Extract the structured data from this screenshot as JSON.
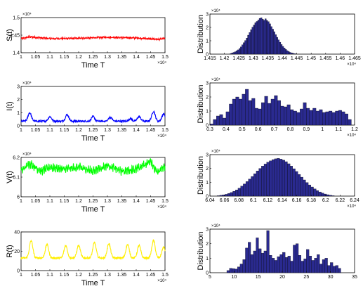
{
  "chart_data": [
    {
      "id": "s-time",
      "type": "line",
      "ylabel": "S(t)",
      "xlabel": "Time T",
      "x_range": [
        10000,
        15000
      ],
      "ylim": [
        14000,
        15000
      ],
      "xticks": [
        "1",
        "1.05",
        "1.1",
        "1.15",
        "1.2",
        "1.25",
        "1.3",
        "1.35",
        "1.4",
        "1.45",
        "1.5"
      ],
      "yticks": [
        "1.4",
        "1.45",
        "1.5"
      ],
      "x_multiplier": "×10⁴",
      "y_multiplier": "×10⁴",
      "color": "#ff0000",
      "base": 14420,
      "trend": [
        [
          10000,
          14400
        ],
        [
          10300,
          14450
        ],
        [
          11000,
          14400
        ],
        [
          12000,
          14410
        ],
        [
          13000,
          14440
        ],
        [
          14000,
          14420
        ],
        [
          14800,
          14380
        ],
        [
          15000,
          14410
        ]
      ],
      "osc_amp": 15,
      "noise_amp": 18
    },
    {
      "id": "s-dist",
      "type": "bar",
      "ylabel": "Distribution",
      "x_range": [
        14150,
        14650
      ],
      "ylim": [
        0,
        30000
      ],
      "xticks": [
        "1.415",
        "1.42",
        "1.425",
        "1.43",
        "1.435",
        "1.44",
        "1.445",
        "1.45",
        "1.455",
        "1.46",
        "1.465"
      ],
      "yticks": [
        "0",
        "1",
        "2",
        "3"
      ],
      "x_multiplier": "×10⁴",
      "y_multiplier": "×10⁴",
      "color": "#2a2a90",
      "bin_start": 14220,
      "bin_width": 5,
      "values": [
        500,
        900,
        1300,
        1800,
        2500,
        3200,
        4200,
        5400,
        7000,
        8600,
        10200,
        12000,
        14200,
        16200,
        18300,
        20200,
        21800,
        23500,
        24500,
        25500,
        26800,
        27200,
        26200,
        25300,
        26500,
        25200,
        24300,
        22700,
        20600,
        18700,
        16800,
        14600,
        12600,
        10700,
        8900,
        7200,
        5800,
        4600,
        3500,
        2600,
        1900,
        1300,
        900,
        600,
        350,
        200
      ]
    },
    {
      "id": "i-time",
      "type": "line",
      "ylabel": "I(t)",
      "xlabel": "Time T",
      "x_range": [
        10000,
        15000
      ],
      "ylim": [
        0,
        30000
      ],
      "xticks": [
        "1",
        "1.05",
        "1.1",
        "1.15",
        "1.2",
        "1.25",
        "1.3",
        "1.35",
        "1.4",
        "1.45",
        "1.5"
      ],
      "yticks": [
        "0",
        "1",
        "2",
        "3"
      ],
      "x_multiplier": "×10⁴",
      "y_multiplier": "×10⁴",
      "color": "#0000ff",
      "peaks": [
        [
          10300,
          10000
        ],
        [
          11000,
          7000
        ],
        [
          11600,
          8500
        ],
        [
          12500,
          7000
        ],
        [
          13100,
          6500
        ],
        [
          13800,
          5500
        ],
        [
          14100,
          7000
        ],
        [
          14600,
          11000
        ],
        [
          14950,
          9000
        ]
      ],
      "min_level": 3500,
      "noise_amp": 700
    },
    {
      "id": "i-dist",
      "type": "bar",
      "ylabel": "Distribution",
      "x_range": [
        3000,
        12000
      ],
      "ylim": [
        0,
        30000
      ],
      "xticks": [
        "0.3",
        "0.4",
        "0.5",
        "0.6",
        "0.7",
        "0.8",
        "0.9",
        "1",
        "1.1",
        "1.2"
      ],
      "yticks": [
        "0",
        "1",
        "2",
        "3"
      ],
      "x_multiplier": "×10⁴",
      "y_multiplier": "×10⁴",
      "color": "#2a2a90",
      "bin_start": 3000,
      "bin_width": 200,
      "values": [
        800,
        4000,
        6500,
        7500,
        5000,
        9500,
        15000,
        18500,
        20000,
        18500,
        22000,
        25500,
        17500,
        19000,
        12000,
        11500,
        16000,
        20500,
        15500,
        18500,
        21000,
        17500,
        13500,
        13000,
        14500,
        11000,
        10000,
        9000,
        11500,
        16000,
        12000,
        10500,
        12000,
        10000,
        11000,
        9000,
        9500,
        10000,
        9000,
        10000,
        10500,
        9500,
        8000,
        4000
      ]
    },
    {
      "id": "v-time",
      "type": "line",
      "ylabel": "V(t)",
      "xlabel": "Time T",
      "x_range": [
        10000,
        15000
      ],
      "ylim": [
        60000,
        62000
      ],
      "xticks": [
        "1",
        "1.05",
        "1.1",
        "1.15",
        "1.2",
        "1.25",
        "1.3",
        "1.35",
        "1.4",
        "1.45",
        "1.5"
      ],
      "yticks": [
        "6",
        "6.1",
        "6.2"
      ],
      "x_multiplier": "×10⁴",
      "y_multiplier": "×10⁴",
      "color": "#00ff00",
      "base": 61450,
      "trend": [
        [
          10000,
          61300
        ],
        [
          10300,
          61700
        ],
        [
          10700,
          61300
        ],
        [
          11000,
          61500
        ],
        [
          11500,
          61400
        ],
        [
          12000,
          61500
        ],
        [
          12500,
          61300
        ],
        [
          13000,
          61600
        ],
        [
          13500,
          61300
        ],
        [
          14000,
          61400
        ],
        [
          14500,
          61800
        ],
        [
          14700,
          61300
        ],
        [
          15000,
          61500
        ]
      ],
      "osc_amp": 120,
      "noise_amp": 130
    },
    {
      "id": "v-dist",
      "type": "bar",
      "ylabel": "Distribution",
      "x_range": [
        60400,
        62400
      ],
      "ylim": [
        0,
        30000
      ],
      "xticks": [
        "6.04",
        "6.06",
        "6.08",
        "6.1",
        "6.12",
        "6.14",
        "6.16",
        "6.18",
        "6.2",
        "6.22",
        "6.24"
      ],
      "yticks": [
        "0",
        "1",
        "2",
        "3"
      ],
      "x_multiplier": "×10⁴",
      "y_multiplier": "×10⁴",
      "color": "#2a2a90",
      "bin_start": 60500,
      "bin_width": 36,
      "values": [
        300,
        600,
        900,
        1300,
        1900,
        2600,
        3500,
        4500,
        5700,
        7200,
        8800,
        10500,
        12300,
        14200,
        16200,
        18200,
        20000,
        21700,
        23200,
        24500,
        25500,
        26400,
        27000,
        27300,
        26800,
        26000,
        24900,
        23400,
        21700,
        19800,
        17800,
        15700,
        13700,
        11700,
        9800,
        8100,
        6600,
        5200,
        4000,
        3000,
        2200,
        1500,
        1000,
        600,
        300
      ]
    },
    {
      "id": "r-time",
      "type": "line",
      "ylabel": "R(t)",
      "xlabel": "Time T",
      "x_range": [
        10000,
        15000
      ],
      "ylim": [
        0,
        40
      ],
      "xticks": [
        "1",
        "1.05",
        "1.1",
        "1.15",
        "1.2",
        "1.25",
        "1.3",
        "1.35",
        "1.4",
        "1.45",
        "1.5"
      ],
      "yticks": [
        "0",
        "20",
        "40"
      ],
      "x_multiplier": "×10⁴",
      "color": "#ffee00",
      "peaks": [
        [
          10350,
          31
        ],
        [
          10900,
          27
        ],
        [
          11550,
          26
        ],
        [
          12000,
          26
        ],
        [
          12550,
          29
        ],
        [
          13050,
          28
        ],
        [
          13700,
          27
        ],
        [
          14100,
          26
        ],
        [
          14600,
          31
        ],
        [
          14950,
          24
        ]
      ],
      "min_level": 13,
      "noise_amp": 1
    },
    {
      "id": "r-dist",
      "type": "bar",
      "ylabel": "Distribution",
      "x_range": [
        5,
        35
      ],
      "ylim": [
        0,
        30000
      ],
      "xticks": [
        "5",
        "10",
        "15",
        "20",
        "25",
        "30",
        "35"
      ],
      "yticks": [
        "0",
        "1",
        "2",
        "3"
      ],
      "x_multiplier": "",
      "y_multiplier": "×10⁴",
      "color": "#2a2a90",
      "bin_start": 8.5,
      "bin_width": 0.55,
      "values": [
        1500,
        3000,
        2800,
        2500,
        4000,
        6000,
        9000,
        17000,
        21000,
        12500,
        15000,
        24000,
        16500,
        13500,
        15000,
        29000,
        12000,
        10000,
        8500,
        11000,
        12500,
        14000,
        10500,
        11500,
        8000,
        19000,
        20000,
        12000,
        8000,
        9500,
        16000,
        11500,
        8500,
        10000,
        12500,
        6000,
        9000,
        10000,
        5000,
        7000,
        4500,
        5000,
        3000
      ]
    }
  ]
}
